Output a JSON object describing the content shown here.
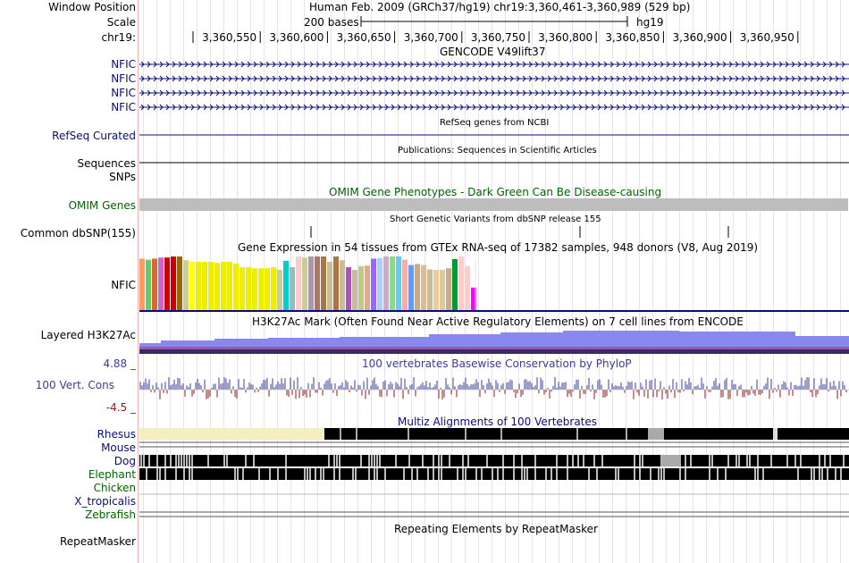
{
  "header": {
    "window_position_label": "Window Position",
    "window_position_text": "Human Feb. 2009 (GRCh37/hg19)   chr19:3,360,461-3,360,989 (529 bp)",
    "scale_label": "Scale",
    "scale_text": "200 bases",
    "assembly": "hg19",
    "chrom_label": "chr19:",
    "ruler_ticks": [
      "3,360,550",
      "3,360,600",
      "3,360,650",
      "3,360,700",
      "3,360,750",
      "3,360,800",
      "3,360,850",
      "3,360,900",
      "3,360,950"
    ]
  },
  "tracks": {
    "gencode": {
      "title": "GENCODE V49lift37",
      "labels": [
        "NFIC",
        "NFIC",
        "NFIC",
        "NFIC"
      ]
    },
    "refseq": {
      "title": "RefSeq genes from NCBI",
      "label": "RefSeq Curated"
    },
    "publications": {
      "title": "Publications: Sequences in Scientific Articles",
      "labels": [
        "Sequences",
        "SNPs"
      ]
    },
    "omim": {
      "title": "OMIM Gene Phenotypes - Dark Green Can Be Disease-causing",
      "label": "OMIM Genes"
    },
    "dbsnp": {
      "title": "Short Genetic Variants from dbSNP release 155",
      "label": "Common dbSNP(155)"
    },
    "gtex": {
      "title": "Gene Expression in 54 tissues from GTEx RNA-seq of 17382 samples, 948 donors (V8, Aug 2019)",
      "label": "NFIC",
      "bar_levels": [
        0.96,
        0.94,
        0.96,
        0.98,
        0.98,
        1.0,
        1.0,
        0.93,
        0.9,
        0.9,
        0.9,
        0.9,
        0.88,
        0.9,
        0.9,
        0.87,
        0.8,
        0.8,
        0.78,
        0.78,
        0.78,
        0.8,
        0.75,
        0.92,
        0.8,
        1.0,
        0.98,
        1.0,
        1.0,
        1.0,
        0.9,
        1.0,
        0.93,
        0.8,
        0.75,
        0.82,
        0.83,
        0.96,
        0.97,
        1.0,
        1.0,
        1.0,
        0.94,
        0.84,
        0.86,
        0.84,
        0.76,
        0.75,
        0.75,
        0.78,
        0.95,
        1.0,
        0.82,
        0.42
      ],
      "bar_colors": [
        "#ff9966",
        "#66cc66",
        "#dd6633",
        "#cc66cc",
        "#cc0000",
        "#cc0000",
        "#996600",
        "#cccc99",
        "#ffff00",
        "#eeee00",
        "#eeee00",
        "#eeee00",
        "#eeee00",
        "#eeee00",
        "#eeee00",
        "#eeee00",
        "#eeee00",
        "#eeee00",
        "#eeee00",
        "#eeee00",
        "#eeee00",
        "#eeee00",
        "#cccc99",
        "#00cccc",
        "#99bbbb",
        "#ffcccc",
        "#cccc99",
        "#aa99aa",
        "#aa7766",
        "#aa7744",
        "#ccbb99",
        "#aa7744",
        "#ccbb99",
        "#aa55bb",
        "#ccbb99",
        "#bbcc88",
        "#ddaa99",
        "#9966ff",
        "#aaccff",
        "#ccaacc",
        "#88dd88",
        "#66ccee",
        "#ffaaaa",
        "#6699ff",
        "#ccaa88",
        "#ddbb99",
        "#ccbb99",
        "#eecc99",
        "#ddcc99",
        "#ccaa88",
        "#009933",
        "#ffcccc",
        "#ffcccc",
        "#ff00ff"
      ]
    },
    "h3k27ac": {
      "title": "H3K27Ac Mark (Often Found Near Active Regulatory Elements) on 7 cell lines from ENCODE",
      "label": "Layered H3K27Ac"
    },
    "conservation": {
      "title": "100 vertebrates Basewise Conservation by PhyloP",
      "label": "100 Vert. Cons",
      "max_label": "4.88 _",
      "min_label": "-4.5 _"
    },
    "multiz": {
      "title": "Multiz Alignments of 100 Vertebrates",
      "species": [
        "Rhesus",
        "Mouse",
        "Dog",
        "Elephant",
        "Chicken",
        "X_tropicalis",
        "Zebrafish"
      ]
    },
    "repeatmasker": {
      "title": "Repeating Elements by RepeatMasker",
      "label": "RepeatMasker"
    }
  },
  "colors": {
    "navy": "#0c0c78",
    "green": "#006400",
    "omim_gray": "#bdbdbd",
    "h3k27ac": "#8888ee",
    "cons_pos": "#3c3c96",
    "cons_neg": "#8b1a1a",
    "rhesus_pale": "#f3efc0"
  }
}
